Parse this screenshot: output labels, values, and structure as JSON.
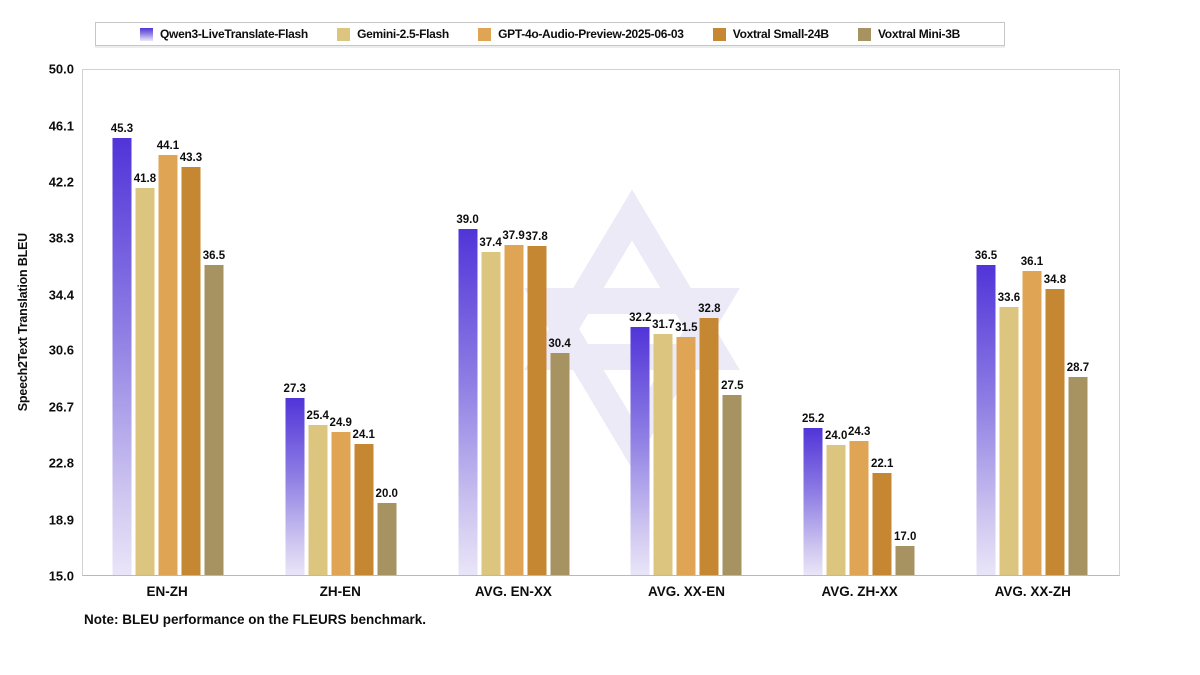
{
  "chart_data": {
    "type": "bar",
    "title": "",
    "ylabel": "Speech2Text Translation BLEU",
    "xlabel": "",
    "ylim": [
      15.0,
      50.0
    ],
    "yticks": [
      15.0,
      18.9,
      22.8,
      26.7,
      30.6,
      34.4,
      38.3,
      42.2,
      46.1,
      50.0
    ],
    "grid": false,
    "legend_position": "top",
    "categories": [
      "EN-ZH",
      "ZH-EN",
      "AVG. EN-XX",
      "AVG. XX-EN",
      "AVG. ZH-XX",
      "AVG. XX-ZH"
    ],
    "series": [
      {
        "name": "Qwen3-LiveTranslate-Flash",
        "color": "#5134d8",
        "gradient": [
          "#5134d8",
          "#8f7fe4",
          "#cfc7f0",
          "#e9e5f8"
        ],
        "values": [
          45.3,
          27.3,
          39.0,
          32.2,
          25.2,
          36.5
        ]
      },
      {
        "name": "Gemini-2.5-Flash",
        "color": "#dcc67f",
        "values": [
          41.8,
          25.4,
          37.4,
          31.7,
          24.0,
          33.6
        ]
      },
      {
        "name": "GPT-4o-Audio-Preview-2025-06-03",
        "color": "#e0a455",
        "values": [
          44.1,
          24.9,
          37.9,
          31.5,
          24.3,
          36.1
        ]
      },
      {
        "name": "Voxtral Small-24B",
        "color": "#c68732",
        "values": [
          43.3,
          24.1,
          37.8,
          32.8,
          22.1,
          34.8
        ]
      },
      {
        "name": "Voxtral Mini-3B",
        "color": "#a79361",
        "values": [
          36.5,
          20.0,
          30.4,
          27.5,
          17.0,
          28.7
        ]
      }
    ],
    "note": "Note: BLEU performance on the FLEURS benchmark.",
    "watermark_color": "#edeaf8"
  }
}
